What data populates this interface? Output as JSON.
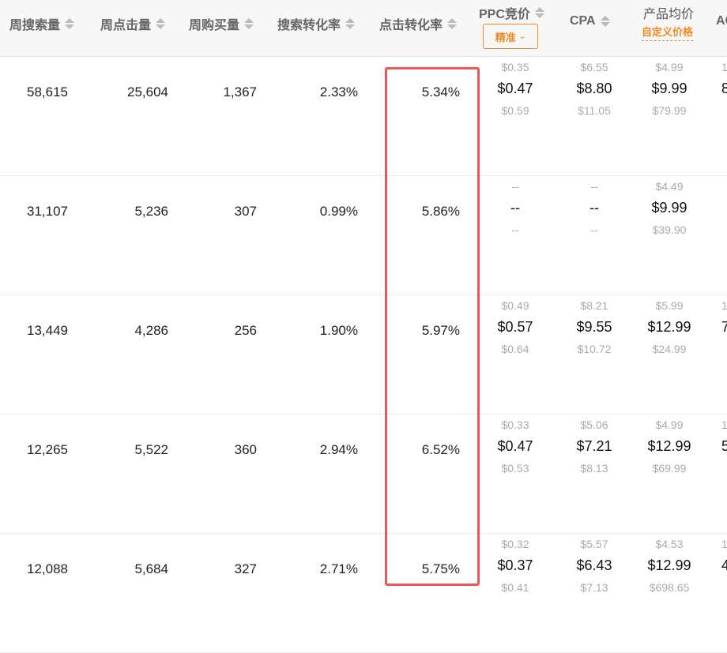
{
  "headers": {
    "weekly_searches": "周搜索量",
    "weekly_clicks": "周点击量",
    "weekly_purchases": "周购买量",
    "search_conversion": "搜索转化率",
    "click_conversion": "点击转化率",
    "ppc": "PPC竞价",
    "ppc_mode": "精准",
    "cpa": "CPA",
    "avg_price": "产品均价",
    "custom_price": "自定义价格",
    "next_col": "AC"
  },
  "accent_color": "#f08a24",
  "highlight_color": "#f25555",
  "rows": [
    {
      "searches": "58,615",
      "clicks": "25,604",
      "purchases": "1,367",
      "search_cvr": "2.33%",
      "click_cvr": "5.34%",
      "ppc": [
        "$0.35",
        "$0.47",
        "$0.59"
      ],
      "cpa": [
        "$6.55",
        "$8.80",
        "$11.05"
      ],
      "price": [
        "$4.99",
        "$9.99",
        "$79.99"
      ],
      "next": [
        "1",
        "8"
      ]
    },
    {
      "searches": "31,107",
      "clicks": "5,236",
      "purchases": "307",
      "search_cvr": "0.99%",
      "click_cvr": "5.86%",
      "ppc": [
        "--",
        "--",
        "--"
      ],
      "cpa": [
        "--",
        "--",
        "--"
      ],
      "price": [
        "$4.49",
        "$9.99",
        "$39.90"
      ],
      "next": [
        "",
        ""
      ]
    },
    {
      "searches": "13,449",
      "clicks": "4,286",
      "purchases": "256",
      "search_cvr": "1.90%",
      "click_cvr": "5.97%",
      "ppc": [
        "$0.49",
        "$0.57",
        "$0.64"
      ],
      "cpa": [
        "$8.21",
        "$9.55",
        "$10.72"
      ],
      "price": [
        "$5.99",
        "$12.99",
        "$24.99"
      ],
      "next": [
        "1",
        "7"
      ]
    },
    {
      "searches": "12,265",
      "clicks": "5,522",
      "purchases": "360",
      "search_cvr": "2.94%",
      "click_cvr": "6.52%",
      "ppc": [
        "$0.33",
        "$0.47",
        "$0.53"
      ],
      "cpa": [
        "$5.06",
        "$7.21",
        "$8.13"
      ],
      "price": [
        "$4.99",
        "$12.99",
        "$69.99"
      ],
      "next": [
        "1",
        "5"
      ]
    },
    {
      "searches": "12,088",
      "clicks": "5,684",
      "purchases": "327",
      "search_cvr": "2.71%",
      "click_cvr": "5.75%",
      "ppc": [
        "$0.32",
        "$0.37",
        "$0.41"
      ],
      "cpa": [
        "$5.57",
        "$6.43",
        "$7.13"
      ],
      "price": [
        "$4.53",
        "$12.99",
        "$698.65"
      ],
      "next": [
        "1",
        "4"
      ]
    }
  ]
}
